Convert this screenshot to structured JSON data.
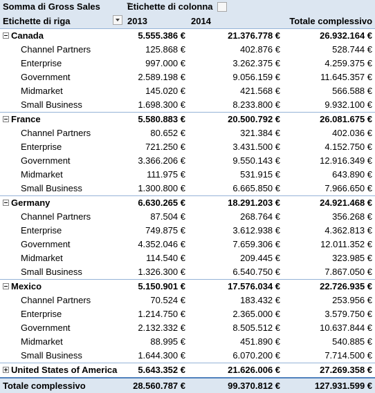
{
  "header": {
    "values_label": "Somma di Gross Sales",
    "column_labels": "Etichette di colonna",
    "row_labels": "Etichette di riga",
    "years": [
      "2013",
      "2014"
    ],
    "grand_total_col": "Totale complessivo"
  },
  "countries": [
    {
      "name": "Canada",
      "expanded": true,
      "v2013": "5.555.386 €",
      "v2014": "21.376.778 €",
      "total": "26.932.164 €",
      "rows": [
        {
          "name": "Channel Partners",
          "v2013": "125.868 €",
          "v2014": "402.876 €",
          "total": "528.744 €"
        },
        {
          "name": "Enterprise",
          "v2013": "997.000 €",
          "v2014": "3.262.375 €",
          "total": "4.259.375 €"
        },
        {
          "name": "Government",
          "v2013": "2.589.198 €",
          "v2014": "9.056.159 €",
          "total": "11.645.357 €"
        },
        {
          "name": "Midmarket",
          "v2013": "145.020 €",
          "v2014": "421.568 €",
          "total": "566.588 €"
        },
        {
          "name": "Small Business",
          "v2013": "1.698.300 €",
          "v2014": "8.233.800 €",
          "total": "9.932.100 €"
        }
      ]
    },
    {
      "name": "France",
      "expanded": true,
      "v2013": "5.580.883 €",
      "v2014": "20.500.792 €",
      "total": "26.081.675 €",
      "rows": [
        {
          "name": "Channel Partners",
          "v2013": "80.652 €",
          "v2014": "321.384 €",
          "total": "402.036 €"
        },
        {
          "name": "Enterprise",
          "v2013": "721.250 €",
          "v2014": "3.431.500 €",
          "total": "4.152.750 €"
        },
        {
          "name": "Government",
          "v2013": "3.366.206 €",
          "v2014": "9.550.143 €",
          "total": "12.916.349 €"
        },
        {
          "name": "Midmarket",
          "v2013": "111.975 €",
          "v2014": "531.915 €",
          "total": "643.890 €"
        },
        {
          "name": "Small Business",
          "v2013": "1.300.800 €",
          "v2014": "6.665.850 €",
          "total": "7.966.650 €"
        }
      ]
    },
    {
      "name": "Germany",
      "expanded": true,
      "v2013": "6.630.265 €",
      "v2014": "18.291.203 €",
      "total": "24.921.468 €",
      "rows": [
        {
          "name": "Channel Partners",
          "v2013": "87.504 €",
          "v2014": "268.764 €",
          "total": "356.268 €"
        },
        {
          "name": "Enterprise",
          "v2013": "749.875 €",
          "v2014": "3.612.938 €",
          "total": "4.362.813 €"
        },
        {
          "name": "Government",
          "v2013": "4.352.046 €",
          "v2014": "7.659.306 €",
          "total": "12.011.352 €"
        },
        {
          "name": "Midmarket",
          "v2013": "114.540 €",
          "v2014": "209.445 €",
          "total": "323.985 €"
        },
        {
          "name": "Small Business",
          "v2013": "1.326.300 €",
          "v2014": "6.540.750 €",
          "total": "7.867.050 €"
        }
      ]
    },
    {
      "name": "Mexico",
      "expanded": true,
      "v2013": "5.150.901 €",
      "v2014": "17.576.034 €",
      "total": "22.726.935 €",
      "rows": [
        {
          "name": "Channel Partners",
          "v2013": "70.524 €",
          "v2014": "183.432 €",
          "total": "253.956 €"
        },
        {
          "name": "Enterprise",
          "v2013": "1.214.750 €",
          "v2014": "2.365.000 €",
          "total": "3.579.750 €"
        },
        {
          "name": "Government",
          "v2013": "2.132.332 €",
          "v2014": "8.505.512 €",
          "total": "10.637.844 €"
        },
        {
          "name": "Midmarket",
          "v2013": "88.995 €",
          "v2014": "451.890 €",
          "total": "540.885 €"
        },
        {
          "name": "Small Business",
          "v2013": "1.644.300 €",
          "v2014": "6.070.200 €",
          "total": "7.714.500 €"
        }
      ]
    },
    {
      "name": "United States of America",
      "expanded": false,
      "v2013": "5.643.352 €",
      "v2014": "21.626.006 €",
      "total": "27.269.358 €",
      "rows": []
    }
  ],
  "grand_total": {
    "label": "Totale complessivo",
    "v2013": "28.560.787 €",
    "v2014": "99.370.812 €",
    "total": "127.931.599 €"
  }
}
